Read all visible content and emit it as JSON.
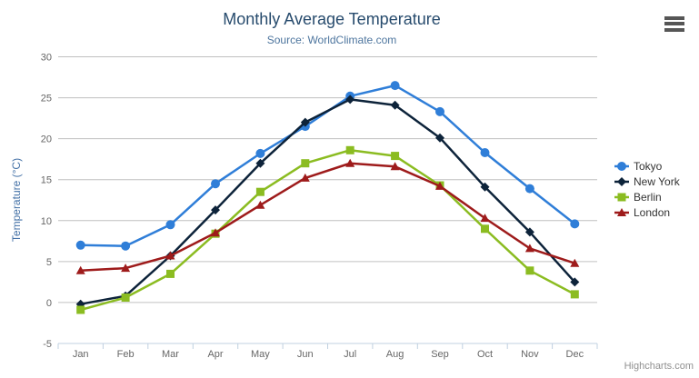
{
  "chart": {
    "credits_label": "Highcharts.com",
    "context_menu_icon": "hamburger-icon"
  },
  "chart_data": {
    "type": "line",
    "title": "Monthly Average Temperature",
    "subtitle": "Source: WorldClimate.com",
    "categories": [
      "Jan",
      "Feb",
      "Mar",
      "Apr",
      "May",
      "Jun",
      "Jul",
      "Aug",
      "Sep",
      "Oct",
      "Nov",
      "Dec"
    ],
    "xlabel": "",
    "ylabel": "Temperature (°C)",
    "ylim": [
      -5,
      30
    ],
    "ytick_interval": 5,
    "grid": true,
    "legend_position": "right",
    "colors": {
      "grid_line": "#C0C0C0",
      "axis_line": "#C0D0E0",
      "axis_label": "#666666",
      "axis_title": "#4572a7",
      "title": "#274b6d",
      "subtitle": "#4d759e",
      "legend_text": "#333333"
    },
    "series": [
      {
        "name": "Tokyo",
        "color": "#2f7ed8",
        "marker": "circle",
        "values": [
          7.0,
          6.9,
          9.5,
          14.5,
          18.2,
          21.5,
          25.2,
          26.5,
          23.3,
          18.3,
          13.9,
          9.6
        ]
      },
      {
        "name": "New York",
        "color": "#0d233a",
        "marker": "diamond",
        "values": [
          -0.2,
          0.8,
          5.7,
          11.3,
          17.0,
          22.0,
          24.8,
          24.1,
          20.1,
          14.1,
          8.6,
          2.5
        ]
      },
      {
        "name": "Berlin",
        "color": "#8bbc21",
        "marker": "square",
        "values": [
          -0.9,
          0.6,
          3.5,
          8.4,
          13.5,
          17.0,
          18.6,
          17.9,
          14.3,
          9.0,
          3.9,
          1.0
        ]
      },
      {
        "name": "London",
        "color": "#9e1b1b",
        "marker": "triangle",
        "values": [
          3.9,
          4.2,
          5.7,
          8.5,
          11.9,
          15.2,
          17.0,
          16.6,
          14.2,
          10.3,
          6.6,
          4.8
        ]
      }
    ]
  }
}
